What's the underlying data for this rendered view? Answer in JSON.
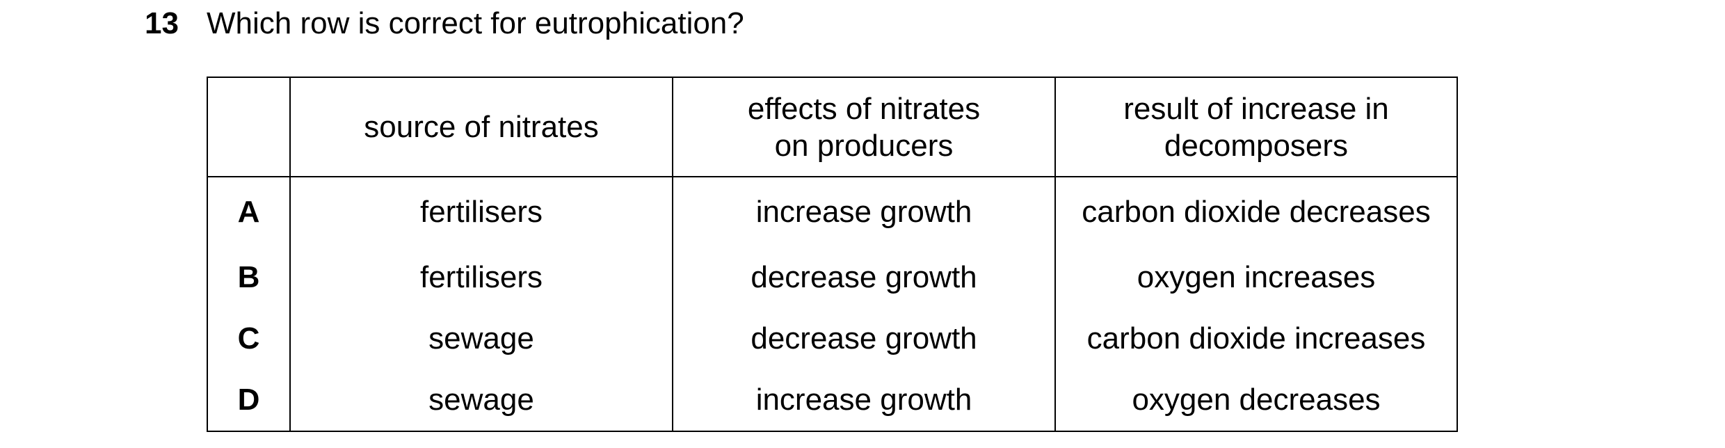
{
  "question": {
    "number": "13",
    "text": "Which row is correct for eutrophication?"
  },
  "table": {
    "headers": {
      "letter": "",
      "source": "source of nitrates",
      "effects_line1": "effects of nitrates",
      "effects_line2": "on producers",
      "result_line1": "result of increase in",
      "result_line2": "decomposers"
    },
    "rows": [
      {
        "letter": "A",
        "source": "fertilisers",
        "effect": "increase growth",
        "result": "carbon dioxide decreases"
      },
      {
        "letter": "B",
        "source": "fertilisers",
        "effect": "decrease growth",
        "result": "oxygen increases"
      },
      {
        "letter": "C",
        "source": "sewage",
        "effect": "decrease growth",
        "result": "carbon dioxide increases"
      },
      {
        "letter": "D",
        "source": "sewage",
        "effect": "increase growth",
        "result": "oxygen decreases"
      }
    ]
  }
}
